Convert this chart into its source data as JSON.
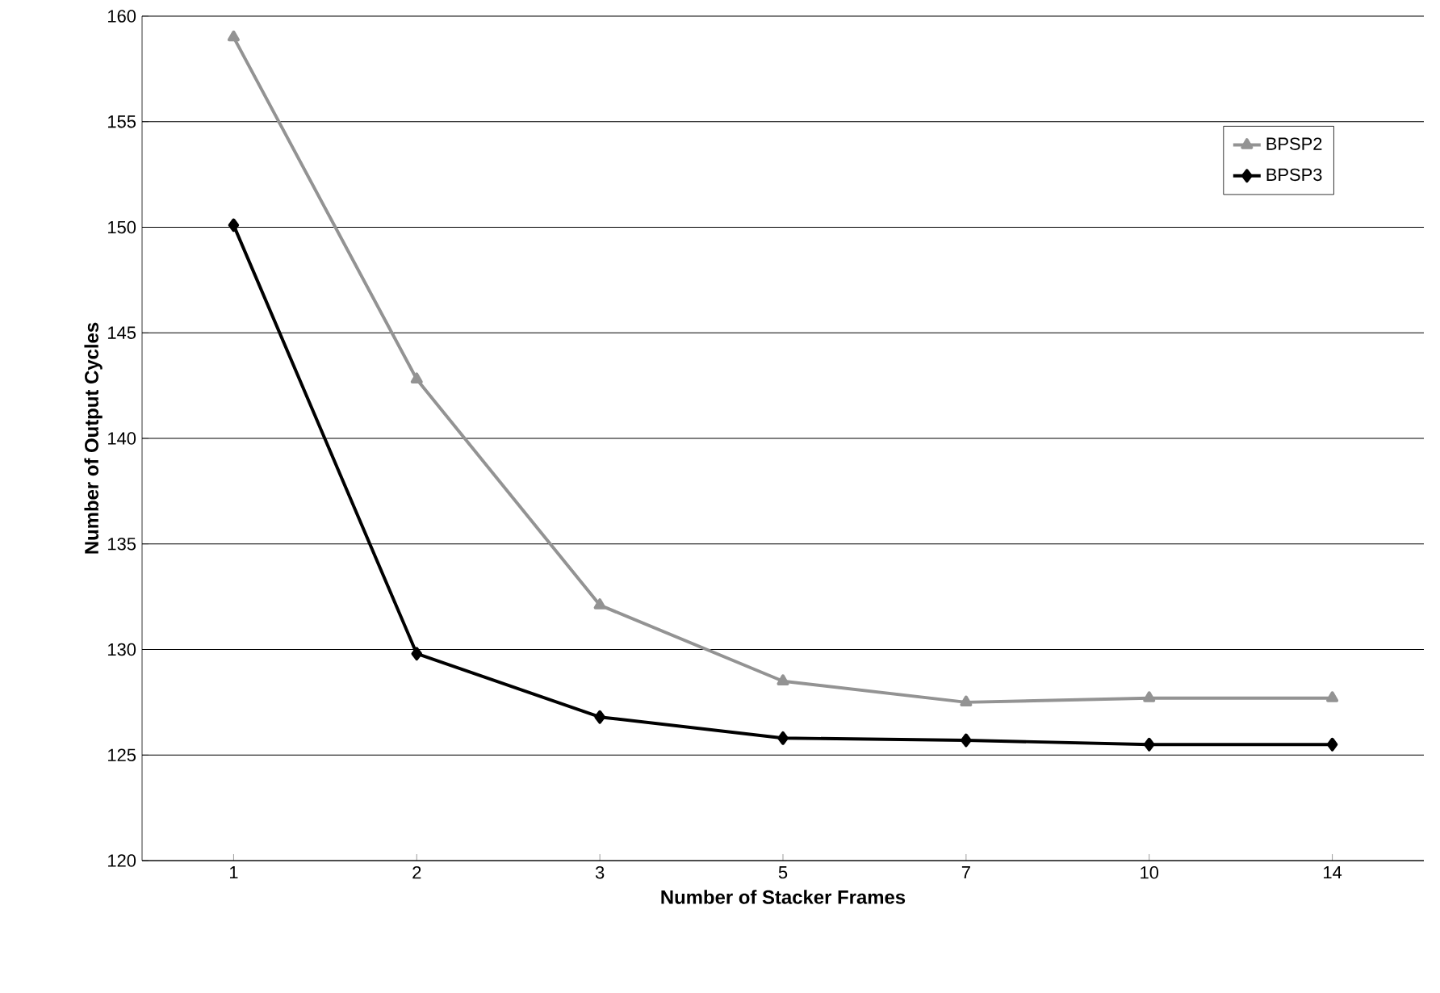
{
  "chart_data": {
    "type": "line",
    "xlabel": "Number of Stacker Frames",
    "ylabel": "Number of Output Cycles",
    "categories": [
      "1",
      "2",
      "3",
      "5",
      "7",
      "10",
      "14"
    ],
    "series": [
      {
        "name": "BPSP2",
        "color": "#939393",
        "marker": "triangle",
        "values": [
          159,
          142.8,
          132.1,
          128.5,
          127.5,
          127.7,
          127.7
        ]
      },
      {
        "name": "BPSP3",
        "color": "#000000",
        "marker": "diamond",
        "values": [
          150.1,
          129.8,
          126.8,
          125.8,
          125.7,
          125.5,
          125.5
        ]
      }
    ],
    "ylim": [
      120,
      160
    ],
    "yticks": [
      120,
      125,
      130,
      135,
      140,
      145,
      150,
      155,
      160
    ],
    "grid": "y",
    "legend": "top right",
    "line_style": "solid"
  }
}
